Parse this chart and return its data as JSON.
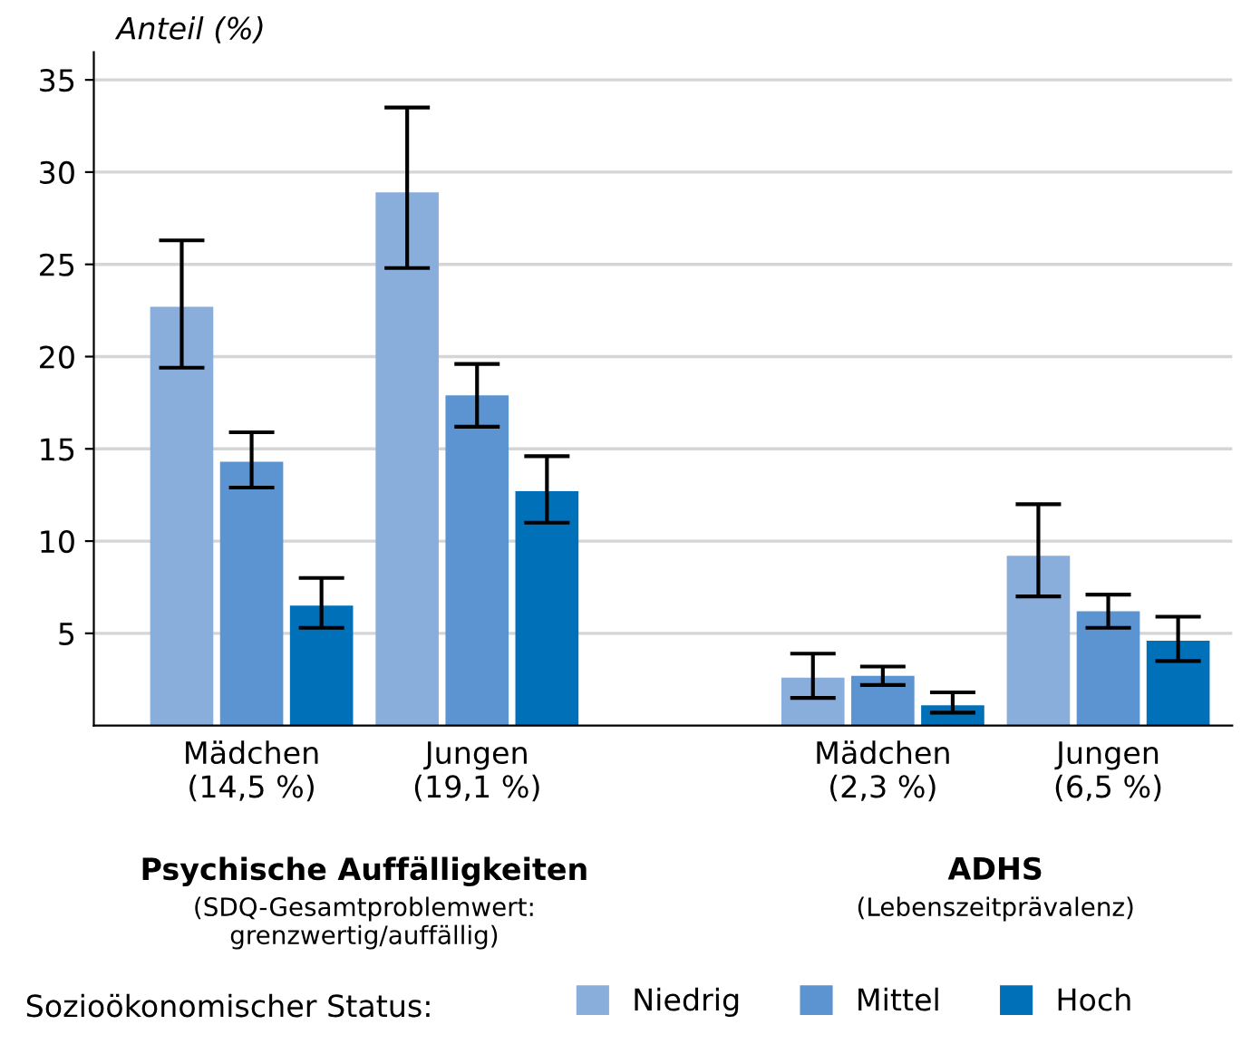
{
  "chart_data": {
    "type": "bar",
    "ylabel": "Anteil (%)",
    "categories": [
      "Mädchen\n(14,5 %)",
      "Jungen\n(19,1 %)",
      "Mädchen\n(2,3 %)",
      "Jungen\n(6,5 %)"
    ],
    "series": [
      {
        "name": "Niedrig",
        "color": "#8aaedb",
        "values": [
          22.7,
          28.9,
          2.6,
          9.2
        ],
        "errors": [
          [
            19.4,
            26.3
          ],
          [
            24.8,
            33.5
          ],
          [
            1.5,
            3.9
          ],
          [
            7.0,
            12.0
          ]
        ]
      },
      {
        "name": "Mittel",
        "color": "#5b94d0",
        "values": [
          14.3,
          17.9,
          2.7,
          6.2
        ],
        "errors": [
          [
            12.9,
            15.9
          ],
          [
            16.2,
            19.6
          ],
          [
            2.2,
            3.2
          ],
          [
            5.3,
            7.1
          ]
        ]
      },
      {
        "name": "Hoch",
        "color": "#0070b8",
        "values": [
          6.5,
          12.7,
          1.1,
          4.6
        ],
        "errors": [
          [
            5.3,
            8.0
          ],
          [
            11.0,
            14.6
          ],
          [
            0.7,
            1.8
          ],
          [
            3.5,
            5.9
          ]
        ]
      }
    ],
    "legend_title": "Sozioökonomischer Status:",
    "annotations": [
      "Psychische Auffälligkeiten",
      "(SDQ-Gesamtproblemwert:\ngrenzwertig/auffällig)",
      "ADHS",
      "(Lebenszeitprävalenz)"
    ],
    "ylim": [
      0,
      36.5
    ],
    "yticks": [
      5,
      10,
      15,
      20,
      25,
      30,
      35
    ],
    "grid": "y",
    "legend": "bottom"
  }
}
